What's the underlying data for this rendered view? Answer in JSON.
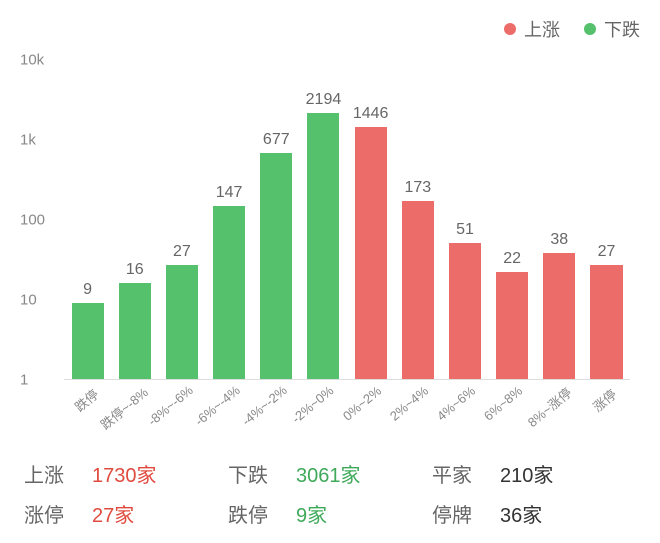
{
  "legend": {
    "up": {
      "label": "上涨",
      "color": "#ec6c6a"
    },
    "down": {
      "label": "下跌",
      "color": "#55c16d"
    }
  },
  "chart": {
    "type": "bar",
    "yscale": "log",
    "ylim": [
      1,
      10000
    ],
    "yticks": [
      {
        "value": 1,
        "label": "1"
      },
      {
        "value": 10,
        "label": "10"
      },
      {
        "value": 100,
        "label": "100"
      },
      {
        "value": 1000,
        "label": "1k"
      },
      {
        "value": 10000,
        "label": "10k"
      }
    ],
    "background_color": "#ffffff",
    "axis_color": "#dddddd",
    "bar_width": 0.68,
    "value_fontsize": 16,
    "xlabel_fontsize": 13,
    "xlabel_rotation_deg": -40,
    "colors": {
      "down": "#55c16d",
      "up": "#ec6c6a"
    },
    "bars": [
      {
        "category": "跌停",
        "value": 9,
        "series": "down"
      },
      {
        "category": "跌停~-8%",
        "value": 16,
        "series": "down"
      },
      {
        "category": "-8%~-6%",
        "value": 27,
        "series": "down"
      },
      {
        "category": "-6%~-4%",
        "value": 147,
        "series": "down"
      },
      {
        "category": "-4%~-2%",
        "value": 677,
        "series": "down"
      },
      {
        "category": "-2%~0%",
        "value": 2194,
        "series": "down"
      },
      {
        "category": "0%~2%",
        "value": 1446,
        "series": "up"
      },
      {
        "category": "2%~4%",
        "value": 173,
        "series": "up"
      },
      {
        "category": "4%~6%",
        "value": 51,
        "series": "up"
      },
      {
        "category": "6%~8%",
        "value": 22,
        "series": "up"
      },
      {
        "category": "8%~涨停",
        "value": 38,
        "series": "up"
      },
      {
        "category": "涨停",
        "value": 27,
        "series": "up"
      }
    ]
  },
  "stats": {
    "row1": [
      {
        "label": "上涨",
        "value": "1730家",
        "color": "#e04b3f"
      },
      {
        "label": "下跌",
        "value": "3061家",
        "color": "#3fa95a"
      },
      {
        "label": "平家",
        "value": "210家",
        "color": "#333333"
      }
    ],
    "row2": [
      {
        "label": "涨停",
        "value": "27家",
        "color": "#e04b3f"
      },
      {
        "label": "跌停",
        "value": "9家",
        "color": "#3fa95a"
      },
      {
        "label": "停牌",
        "value": "36家",
        "color": "#333333"
      }
    ],
    "label_color": "#666666",
    "fontsize": 20
  }
}
